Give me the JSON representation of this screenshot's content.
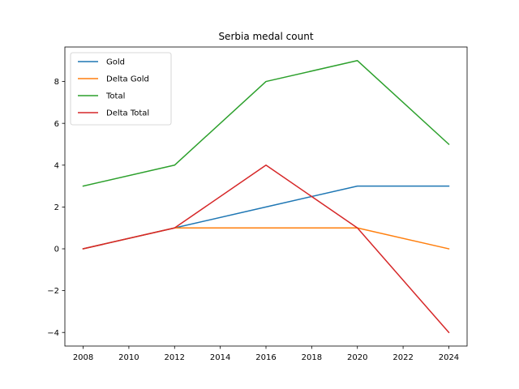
{
  "chart_data": {
    "type": "line",
    "title": "Serbia medal count",
    "xlabel": "",
    "ylabel": "",
    "x": [
      2008,
      2012,
      2016,
      2020,
      2024
    ],
    "xlim": [
      2007.2,
      2024.8
    ],
    "ylim": [
      -4.65,
      9.65
    ],
    "xticks": [
      2008,
      2010,
      2012,
      2014,
      2016,
      2018,
      2020,
      2022,
      2024
    ],
    "yticks": [
      -4,
      -2,
      0,
      2,
      4,
      6,
      8
    ],
    "ytick_labels": [
      "−4",
      "−2",
      "0",
      "2",
      "4",
      "6",
      "8"
    ],
    "grid": false,
    "legend_position": "top-left",
    "series": [
      {
        "name": "Gold",
        "color": "#1f77b4",
        "values": [
          0,
          1,
          2,
          3,
          3
        ]
      },
      {
        "name": "Delta Gold",
        "color": "#ff7f0e",
        "values": [
          0,
          1,
          1,
          1,
          0
        ]
      },
      {
        "name": "Total",
        "color": "#2ca02c",
        "values": [
          3,
          4,
          8,
          9,
          5
        ]
      },
      {
        "name": "Delta Total",
        "color": "#d62728",
        "values": [
          0,
          1,
          4,
          1,
          -4
        ]
      }
    ]
  }
}
